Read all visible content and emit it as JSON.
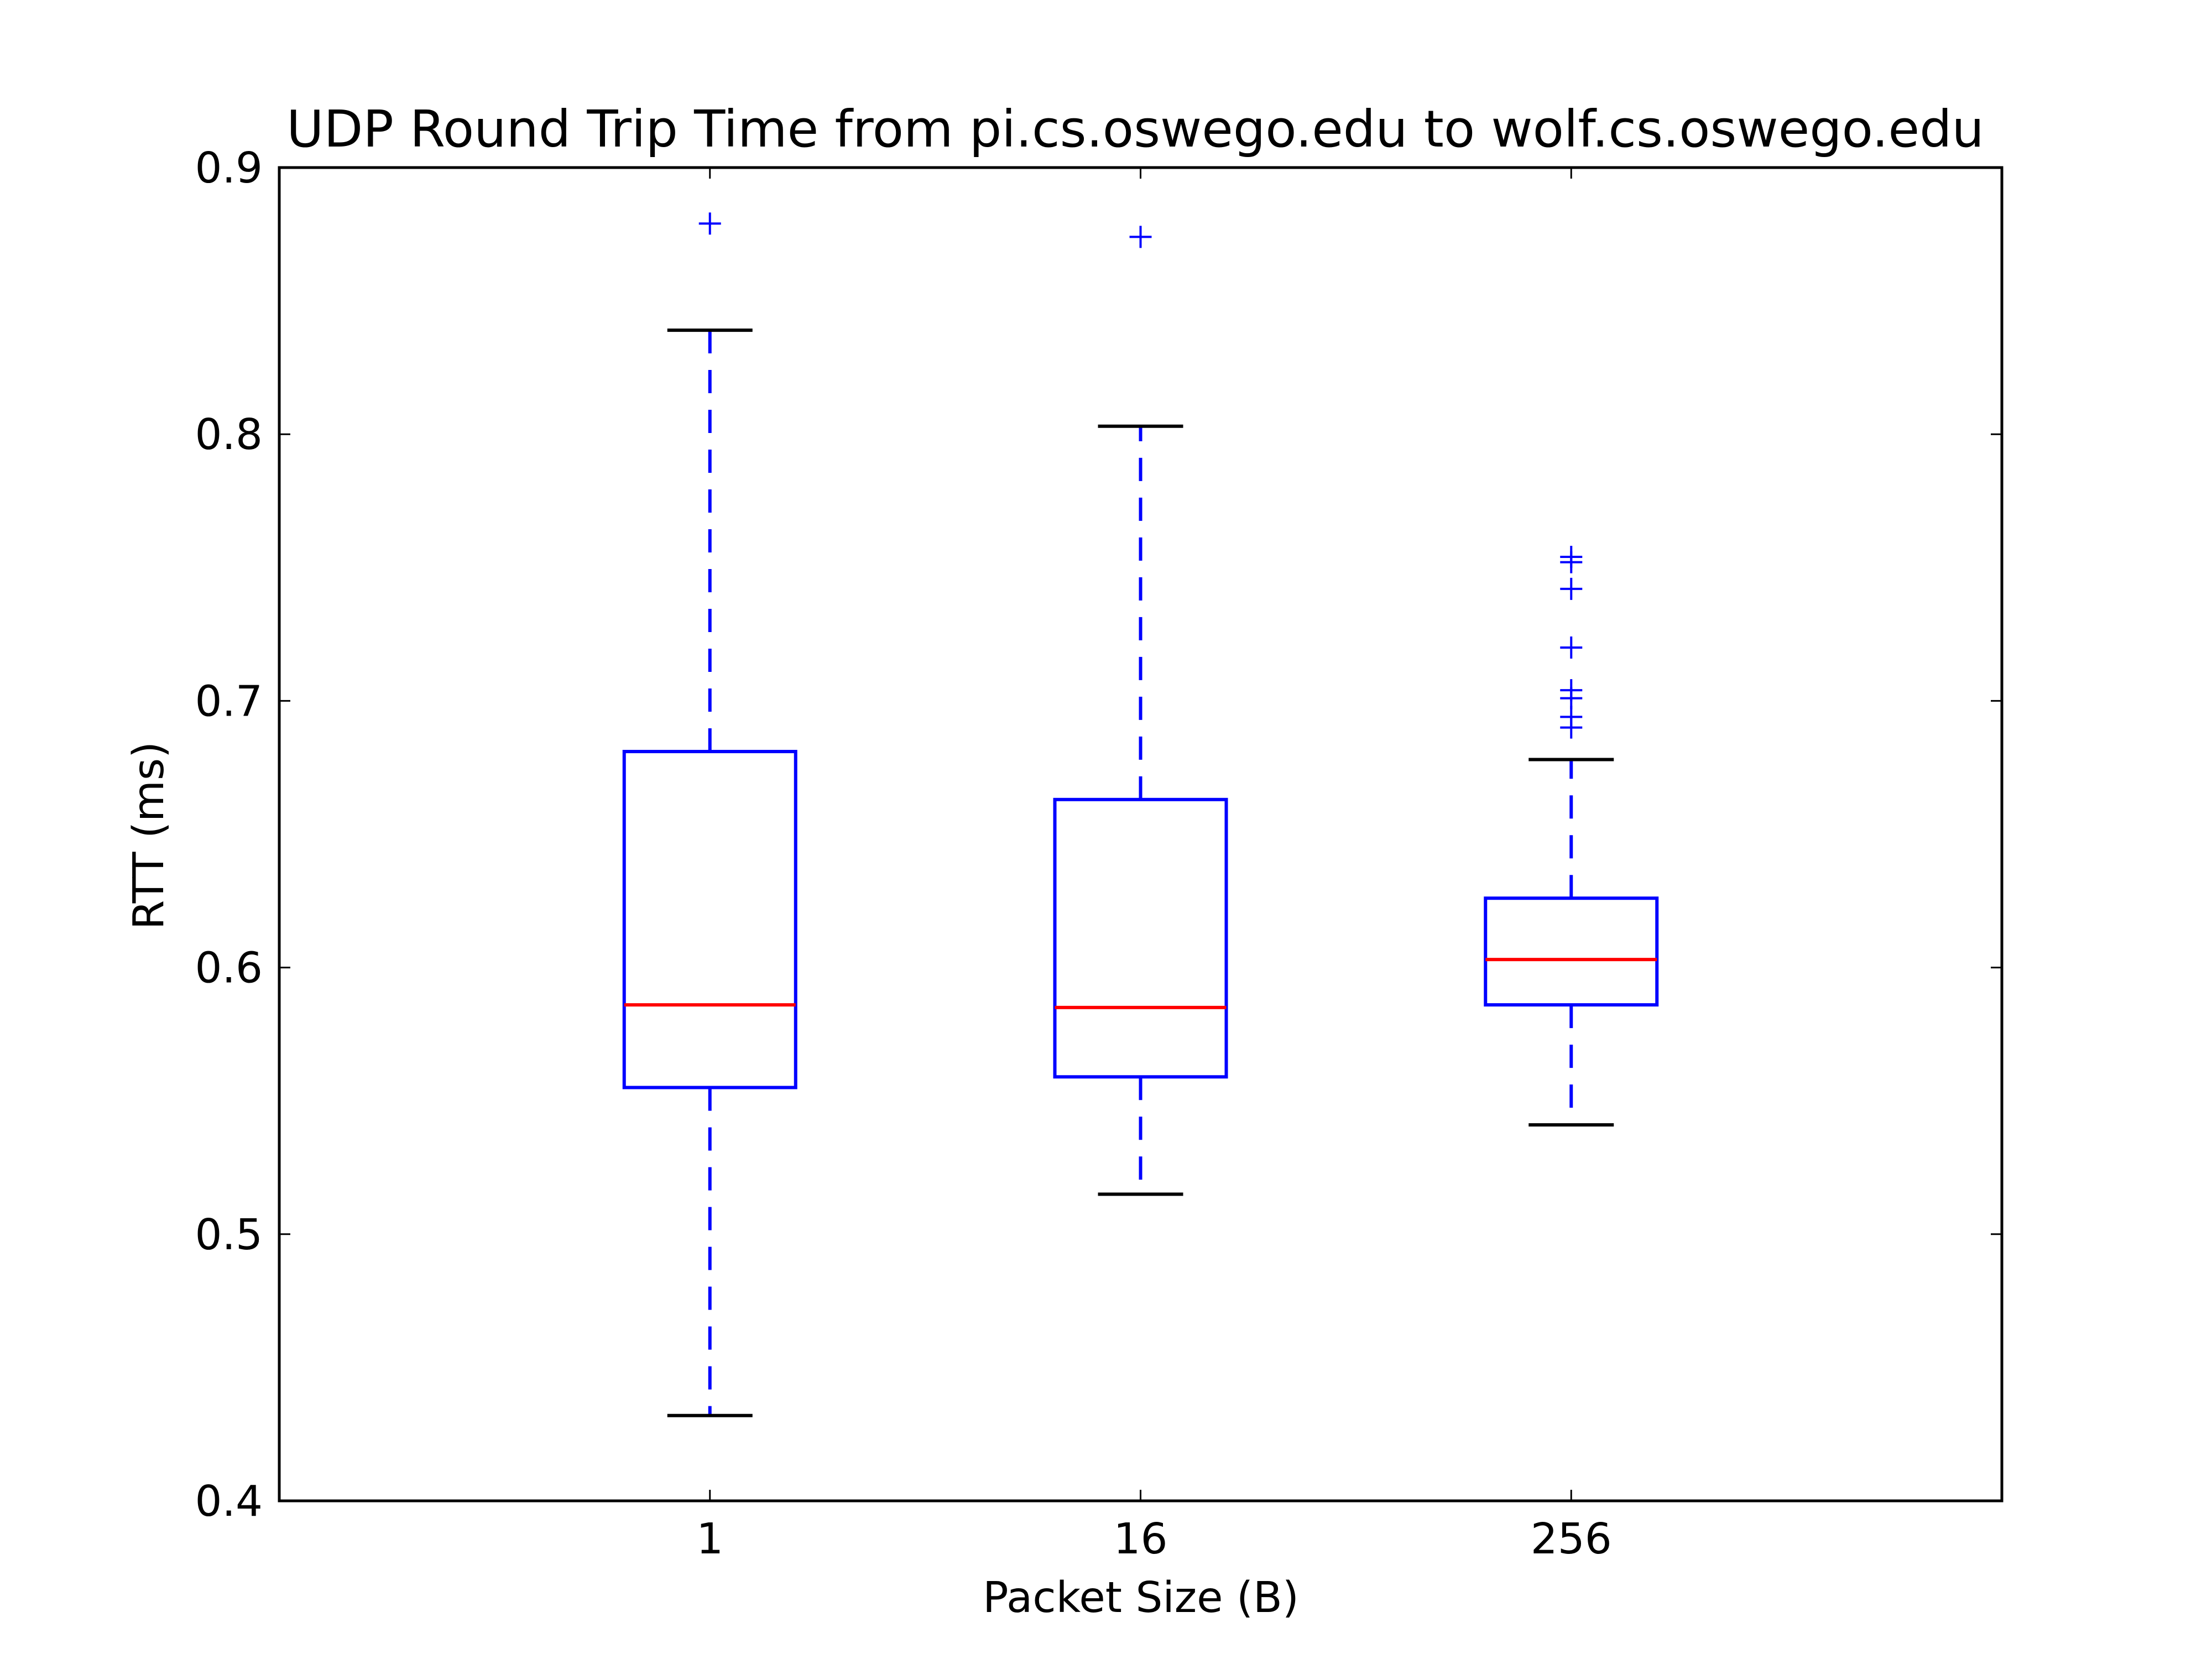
{
  "chart_data": {
    "type": "box",
    "title": "UDP Round Trip Time from pi.cs.oswego.edu to wolf.cs.oswego.edu",
    "xlabel": "Packet Size (B)",
    "ylabel": "RTT (ms)",
    "ylim": [
      0.4,
      0.9
    ],
    "yticks": [
      "0.4",
      "0.5",
      "0.6",
      "0.7",
      "0.8",
      "0.9"
    ],
    "categories": [
      "1",
      "16",
      "256"
    ],
    "boxes": [
      {
        "category": "1",
        "whisker_low": 0.432,
        "q1": 0.555,
        "median": 0.586,
        "q3": 0.681,
        "whisker_high": 0.839,
        "outliers": [
          0.879
        ]
      },
      {
        "category": "16",
        "whisker_low": 0.515,
        "q1": 0.559,
        "median": 0.585,
        "q3": 0.663,
        "whisker_high": 0.803,
        "outliers": [
          0.874
        ]
      },
      {
        "category": "256",
        "whisker_low": 0.541,
        "q1": 0.586,
        "median": 0.603,
        "q3": 0.626,
        "whisker_high": 0.678,
        "outliers": [
          0.69,
          0.694,
          0.701,
          0.704,
          0.72,
          0.742,
          0.752,
          0.754
        ]
      }
    ],
    "grid": false,
    "colors": {
      "box": "#0000ff",
      "median": "#ff0000",
      "whisker_cap": "#000000",
      "outlier": "#0000ff"
    }
  }
}
